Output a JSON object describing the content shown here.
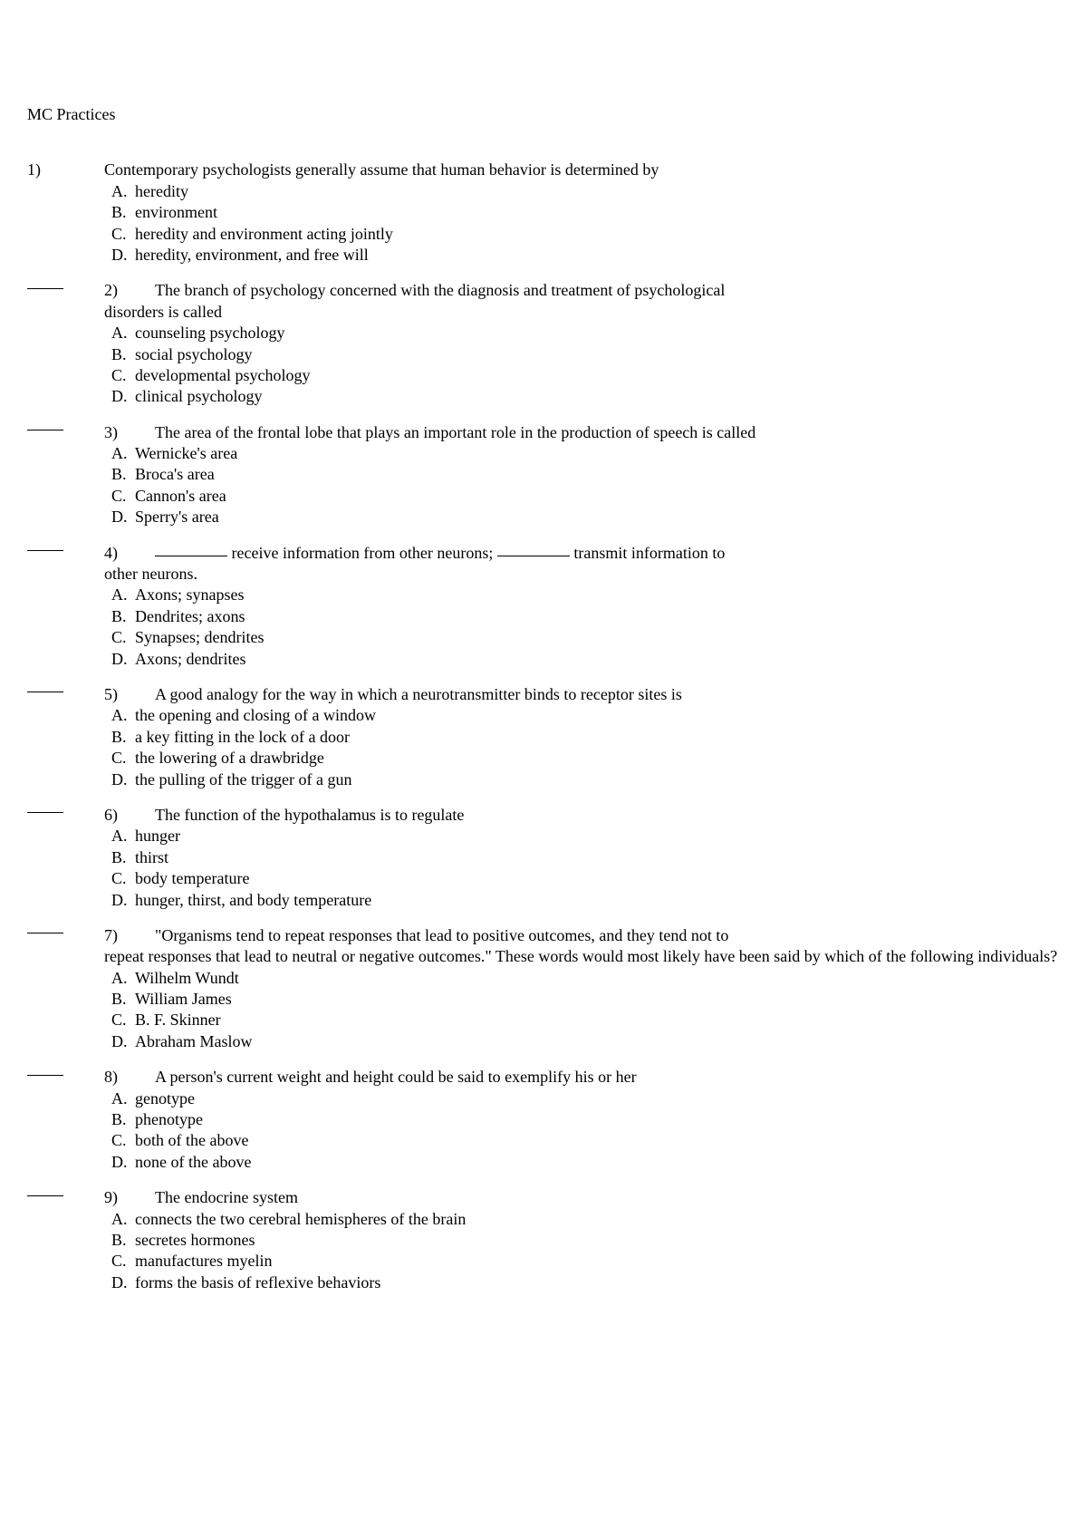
{
  "title": "MC Practices",
  "questions": [
    {
      "num": "1)",
      "show_blank": false,
      "stem_lines": [
        "Contemporary psychologists generally assume that human behavior is determined by"
      ],
      "choices": [
        {
          "letter": "A.",
          "text": "heredity"
        },
        {
          "letter": "B.",
          "text": "environment"
        },
        {
          "letter": "C.",
          "text": "heredity and environment acting jointly"
        },
        {
          "letter": "D.",
          "text": "heredity, environment, and free will"
        }
      ]
    },
    {
      "num": "2)",
      "show_blank": true,
      "stem_lines": [
        "The branch of psychology concerned with the diagnosis and treatment of psychological"
      ],
      "stem_contin": [
        "disorders is called"
      ],
      "choices": [
        {
          "letter": "A.",
          "text": "counseling psychology"
        },
        {
          "letter": "B.",
          "text": "social psychology"
        },
        {
          "letter": "C.",
          "text": "developmental psychology"
        },
        {
          "letter": "D.",
          "text": "clinical psychology"
        }
      ]
    },
    {
      "num": "3)",
      "show_blank": true,
      "stem_lines": [
        "The area of the frontal lobe that plays an important role in the production of speech is called"
      ],
      "choices": [
        {
          "letter": "A.",
          "text": "Wernicke's area"
        },
        {
          "letter": "B.",
          "text": "Broca's area"
        },
        {
          "letter": "C.",
          "text": "Cannon's area"
        },
        {
          "letter": "D.",
          "text": "Sperry's area"
        }
      ]
    },
    {
      "num": "4)",
      "show_blank": true,
      "stem_html": true,
      "stem_lines": [
        "__BLANK__ receive information from other neurons; __BLANK__ transmit information to"
      ],
      "stem_contin": [
        "other neurons."
      ],
      "choices": [
        {
          "letter": "A.",
          "text": "Axons; synapses"
        },
        {
          "letter": "B.",
          "text": "Dendrites; axons"
        },
        {
          "letter": "C.",
          "text": "Synapses; dendrites"
        },
        {
          "letter": "D.",
          "text": "Axons; dendrites"
        }
      ]
    },
    {
      "num": "5)",
      "show_blank": true,
      "stem_lines": [
        "A good analogy for the way in which a neurotransmitter binds to receptor sites is"
      ],
      "choices": [
        {
          "letter": "A.",
          "text": "the opening and closing of a window"
        },
        {
          "letter": "B.",
          "text": "a key fitting in the lock of a door"
        },
        {
          "letter": "C.",
          "text": "the lowering of a drawbridge"
        },
        {
          "letter": "D.",
          "text": "the pulling of the trigger of a gun"
        }
      ]
    },
    {
      "num": "6)",
      "show_blank": true,
      "stem_lines": [
        "The function of the hypothalamus is to regulate"
      ],
      "choices": [
        {
          "letter": "A.",
          "text": "hunger"
        },
        {
          "letter": "B.",
          "text": "thirst"
        },
        {
          "letter": "C.",
          "text": "body temperature"
        },
        {
          "letter": "D.",
          "text": "hunger, thirst, and body temperature"
        }
      ]
    },
    {
      "num": "7)",
      "show_blank": true,
      "stem_lines": [
        "\"Organisms tend to repeat responses that lead to positive outcomes, and they tend not to"
      ],
      "stem_contin": [
        "repeat responses that lead to neutral or negative outcomes.\" These words would most likely have been said by which of the following individuals?"
      ],
      "choices": [
        {
          "letter": "A.",
          "text": "Wilhelm Wundt"
        },
        {
          "letter": "B.",
          "text": "William James"
        },
        {
          "letter": "C.",
          "text": "B. F. Skinner"
        },
        {
          "letter": "D.",
          "text": "Abraham Maslow"
        }
      ]
    },
    {
      "num": "8)",
      "show_blank": true,
      "stem_lines": [
        "A person's current weight and height could be said to exemplify his or her"
      ],
      "choices": [
        {
          "letter": "A.",
          "text": "genotype"
        },
        {
          "letter": "B.",
          "text": "phenotype"
        },
        {
          "letter": "C.",
          "text": "both of the above"
        },
        {
          "letter": "D.",
          "text": "none of the above"
        }
      ]
    },
    {
      "num": "9)",
      "show_blank": true,
      "stem_lines": [
        "The endocrine system"
      ],
      "choices": [
        {
          "letter": "A.",
          "text": "connects the two cerebral hemispheres of the brain"
        },
        {
          "letter": "B.",
          "text": "secretes hormones"
        },
        {
          "letter": "C.",
          "text": "manufactures myelin"
        },
        {
          "letter": "D.",
          "text": "forms the basis of reflexive behaviors"
        }
      ]
    }
  ]
}
